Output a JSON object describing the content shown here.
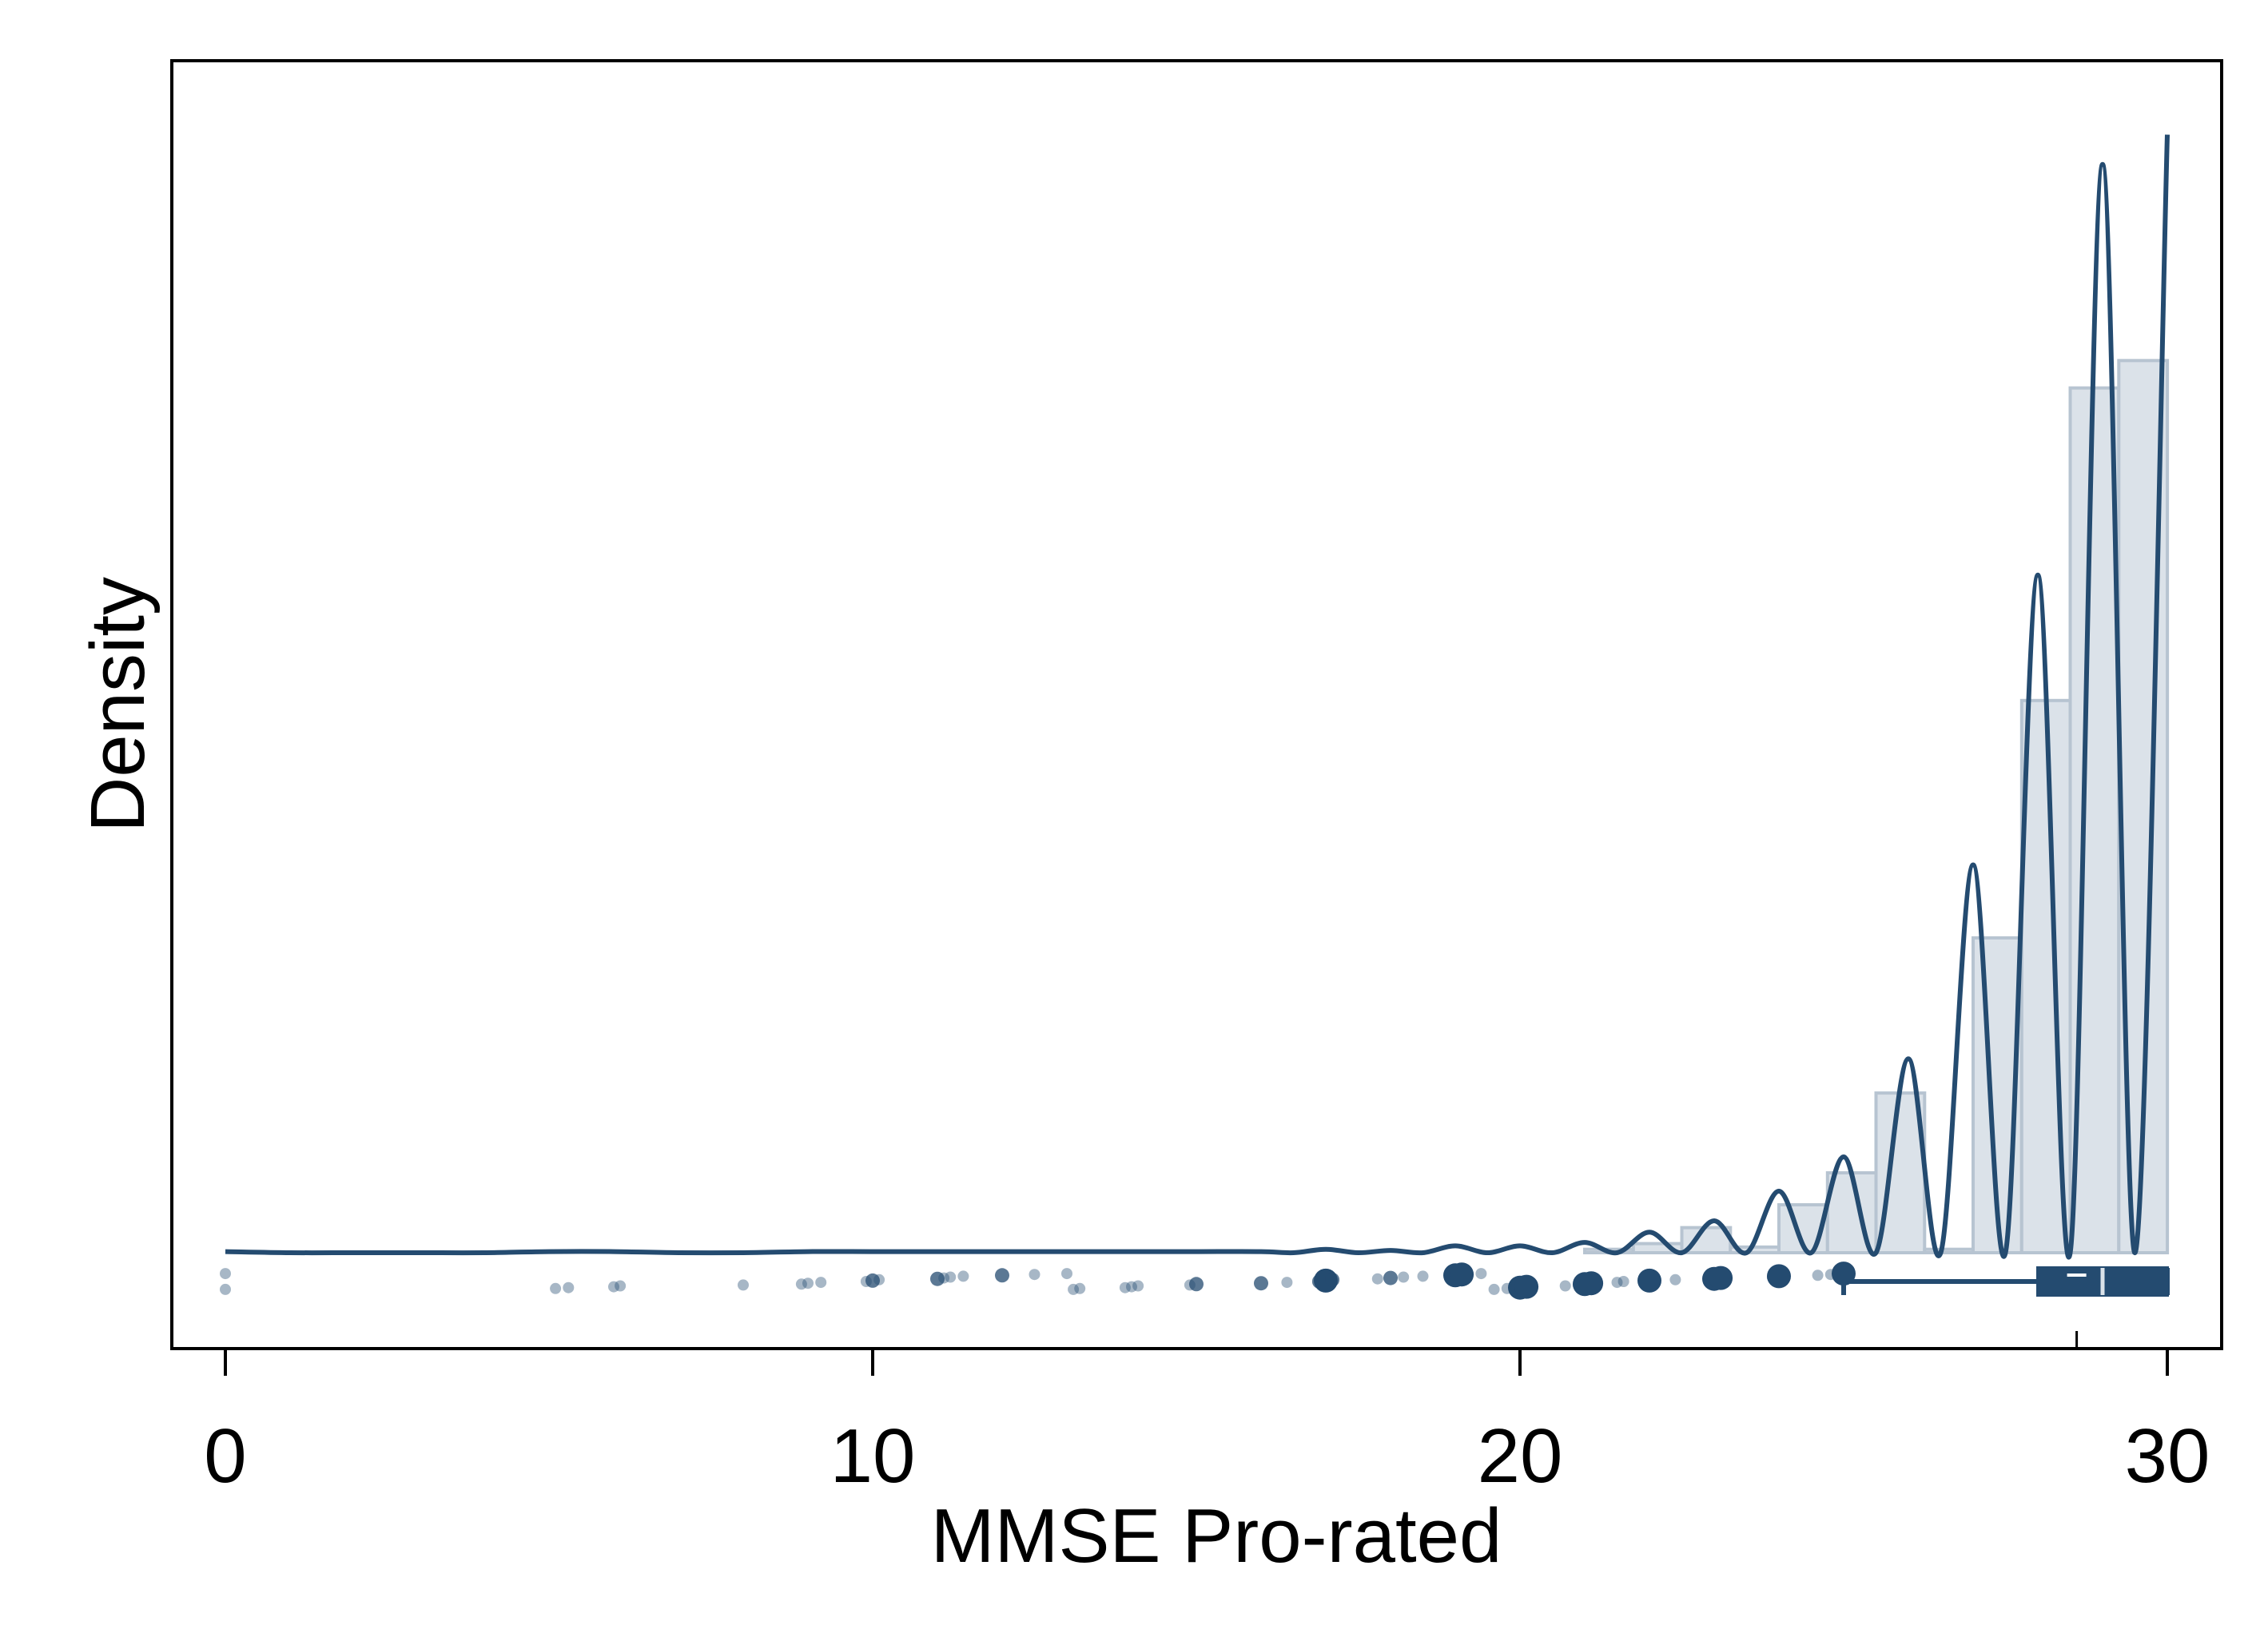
{
  "chart_data": {
    "type": "area",
    "title": "",
    "xlabel": "MMSE Pro-rated",
    "ylabel": "Density",
    "xlim": [
      -0.8,
      30.8
    ],
    "ylim": [
      0,
      1
    ],
    "x_ticks": [
      0,
      10,
      20,
      30
    ],
    "x_tick_labels": [
      "0",
      "10",
      "20",
      "30"
    ],
    "grid": false,
    "legend": "none",
    "colors": {
      "line": "#244b70",
      "bar_fill": "#dbe2e9",
      "bar_stroke": "#b7c4d1",
      "point": "#244b70"
    },
    "histogram": {
      "bin_width": 0.75,
      "bins": [
        {
          "start": 21.0,
          "end": 21.75,
          "density": 0.003
        },
        {
          "start": 21.75,
          "end": 22.5,
          "density": 0.008
        },
        {
          "start": 22.5,
          "end": 23.25,
          "density": 0.022
        },
        {
          "start": 23.25,
          "end": 24.0,
          "density": 0.005
        },
        {
          "start": 24.0,
          "end": 24.75,
          "density": 0.042
        },
        {
          "start": 24.75,
          "end": 25.5,
          "density": 0.07
        },
        {
          "start": 25.5,
          "end": 26.25,
          "density": 0.14
        },
        {
          "start": 26.25,
          "end": 27.0,
          "density": 0.003
        },
        {
          "start": 27.0,
          "end": 27.75,
          "density": 0.276
        },
        {
          "start": 27.75,
          "end": 28.5,
          "density": 0.484
        },
        {
          "start": 28.5,
          "end": 29.25,
          "density": 0.758
        },
        {
          "start": 29.25,
          "end": 30.0,
          "density": 0.782
        }
      ]
    },
    "density_curve": {
      "x": [
        0,
        1,
        2,
        3,
        4,
        5,
        6,
        7,
        8,
        9,
        10,
        11,
        12,
        13,
        14,
        15,
        16,
        16.5,
        17,
        17.5,
        18,
        18.5,
        19,
        19.5,
        20,
        20.5,
        21,
        21.5,
        22,
        22.5,
        23,
        23.5,
        24,
        24.5,
        25,
        25.5,
        26,
        26.5,
        27,
        27.5,
        28,
        28.5,
        29,
        29.5,
        30
      ],
      "y": [
        0.001,
        0.0,
        0.0,
        0.0,
        0.0,
        0.001,
        0.001,
        0.0,
        0.0,
        0.001,
        0.001,
        0.001,
        0.001,
        0.001,
        0.001,
        0.001,
        0.001,
        0.0,
        0.003,
        0.0,
        0.002,
        0.0,
        0.006,
        0.0,
        0.006,
        0.0,
        0.009,
        0.0,
        0.018,
        0.0,
        0.028,
        0.0,
        0.054,
        0.0,
        0.084,
        0.0,
        0.17,
        0.0,
        0.34,
        0.0,
        0.594,
        0.0,
        0.954,
        0.0,
        0.98
      ]
    },
    "points": {
      "x": [
        0,
        0,
        5.1,
        5.3,
        6.0,
        6.1,
        8.0,
        8.9,
        9.0,
        9.2,
        9.9,
        10.0,
        10.1,
        11.0,
        11.1,
        11.2,
        11.4,
        12.0,
        12.5,
        13.0,
        13.1,
        13.2,
        13.9,
        14.0,
        14.1,
        14.9,
        15.0,
        16.0,
        16.4,
        16.9,
        17.0,
        17.1,
        17.8,
        18.0,
        18.2,
        18.5,
        19.0,
        19.1,
        19.4,
        19.6,
        19.8,
        20.0,
        20.1,
        20.7,
        20.9,
        21.0,
        21.1,
        21.5,
        21.6,
        22.0,
        22.4,
        23.0,
        23.1,
        23.9,
        24.0,
        24.6,
        24.8,
        25.0
      ],
      "size": [
        1,
        1,
        1,
        1,
        1,
        1,
        1,
        1,
        1,
        1,
        1,
        2,
        1,
        2,
        1,
        1,
        1,
        2,
        1,
        1,
        1,
        1,
        1,
        1,
        1,
        1,
        2,
        2,
        1,
        2,
        3,
        2,
        1,
        2,
        1,
        1,
        3,
        3,
        1,
        1,
        1,
        3,
        3,
        1,
        1,
        3,
        3,
        1,
        1,
        3,
        1,
        3,
        3,
        1,
        3,
        1,
        1,
        3
      ]
    },
    "boxplot": {
      "whisker_low": 25,
      "q1": 28,
      "median": 29,
      "q3": 30,
      "whisker_high": 30,
      "mean": 28.6
    }
  }
}
